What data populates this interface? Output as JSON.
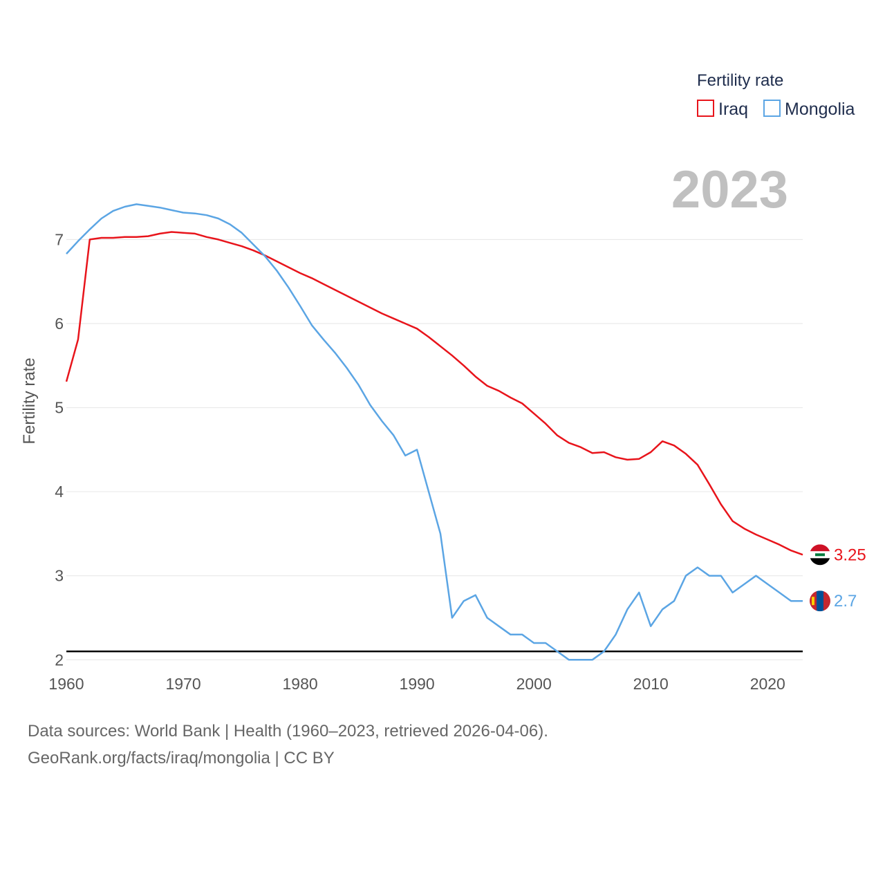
{
  "chart_data": {
    "type": "line",
    "legend_title": "Fertility rate",
    "ylabel": "Fertility rate",
    "xlim": [
      1960,
      2023
    ],
    "ylim": [
      1.55,
      7.9
    ],
    "yticks": [
      2,
      3,
      4,
      5,
      6,
      7
    ],
    "xticks": [
      1960,
      1970,
      1980,
      1990,
      2000,
      2010,
      2020
    ],
    "year_label": "2023",
    "reference_line": 2.1,
    "grid": true,
    "legend_position": "top-right",
    "series": [
      {
        "name": "Iraq",
        "color": "#e8141b",
        "end_label": "3.25",
        "values": [
          5.31,
          5.81,
          7.0,
          7.02,
          7.02,
          7.03,
          7.03,
          7.04,
          7.07,
          7.09,
          7.08,
          7.07,
          7.03,
          7.0,
          6.96,
          6.92,
          6.87,
          6.81,
          6.74,
          6.67,
          6.6,
          6.54,
          6.47,
          6.4,
          6.33,
          6.26,
          6.19,
          6.12,
          6.06,
          6.0,
          5.94,
          5.84,
          5.73,
          5.62,
          5.5,
          5.37,
          5.26,
          5.2,
          5.12,
          5.05,
          4.93,
          4.81,
          4.67,
          4.58,
          4.53,
          4.46,
          4.47,
          4.41,
          4.38,
          4.39,
          4.47,
          4.6,
          4.55,
          4.45,
          4.32,
          4.09,
          3.85,
          3.65,
          3.56,
          3.49,
          3.43,
          3.37,
          3.3,
          3.25
        ]
      },
      {
        "name": "Mongolia",
        "color": "#5ba5e4",
        "end_label": "2.7",
        "values": [
          6.83,
          6.98,
          7.12,
          7.25,
          7.34,
          7.39,
          7.42,
          7.4,
          7.38,
          7.35,
          7.32,
          7.31,
          7.29,
          7.25,
          7.18,
          7.08,
          6.94,
          6.8,
          6.63,
          6.43,
          6.21,
          5.98,
          5.81,
          5.65,
          5.47,
          5.27,
          5.03,
          4.84,
          4.67,
          4.43,
          4.5,
          4.0,
          3.5,
          2.5,
          2.7,
          2.77,
          2.5,
          2.4,
          2.3,
          2.3,
          2.2,
          2.2,
          2.1,
          2.0,
          2.0,
          2.0,
          2.1,
          2.3,
          2.6,
          2.8,
          2.4,
          2.6,
          2.7,
          3.0,
          3.1,
          3.0,
          3.0,
          2.8,
          2.9,
          3.0,
          2.9,
          2.8,
          2.7,
          2.7
        ]
      }
    ]
  },
  "footer": {
    "line1": "Data sources: World Bank | Health (1960–2023, retrieved 2026-04-06).",
    "line2": "GeoRank.org/facts/iraq/mongolia | CC BY"
  }
}
